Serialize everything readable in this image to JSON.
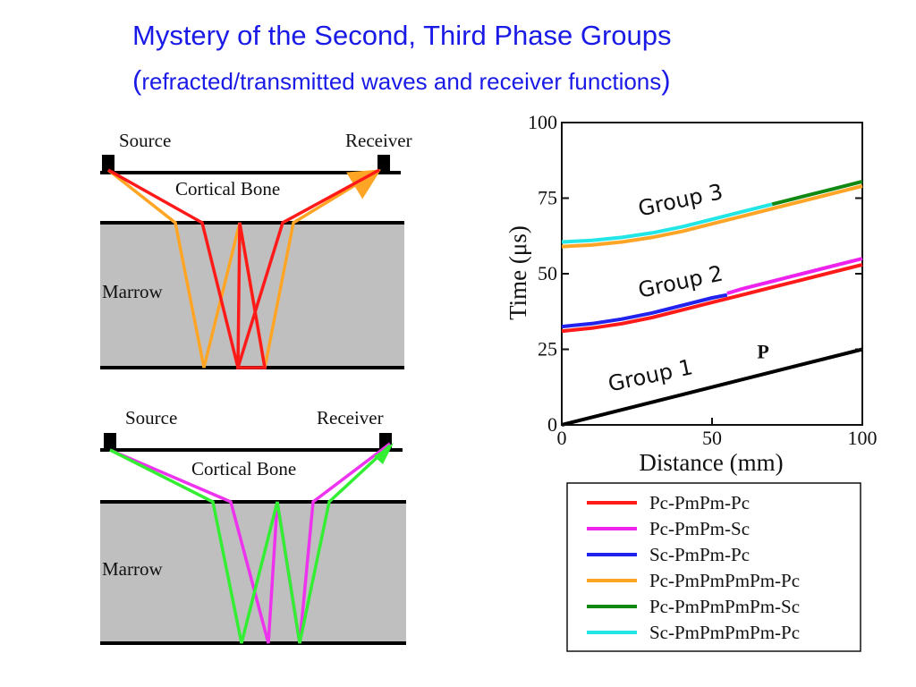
{
  "slide": {
    "title": "Mystery of the Second, Third Phase Groups",
    "subtitle_open": "(",
    "subtitle_text": "refracted/transmitted waves and receiver functions",
    "subtitle_close": ")"
  },
  "diagram_top": {
    "source_label": "Source",
    "receiver_label": "Receiver",
    "bone_label": "Cortical Bone",
    "marrow_label": "Marrow",
    "colors": {
      "ray_a": "#ff1a1a",
      "ray_b": "#ffa526",
      "marrow": "#bfbfbf"
    }
  },
  "diagram_bottom": {
    "source_label": "Source",
    "receiver_label": "Receiver",
    "bone_label": "Cortical Bone",
    "marrow_label": "Marrow",
    "colors": {
      "ray_a": "#33ee33",
      "ray_b": "#ee33ee",
      "marrow": "#bfbfbf"
    }
  },
  "chart_data": {
    "type": "line",
    "xlabel": "Distance (mm)",
    "ylabel": "Time (μs)",
    "xlim": [
      0,
      100
    ],
    "ylim": [
      0,
      100
    ],
    "x_ticks": [
      0,
      50,
      100
    ],
    "y_ticks": [
      0,
      25,
      50,
      75,
      100
    ],
    "grid": false,
    "legend_position": "below",
    "annotations": [
      {
        "text": "Group 1",
        "x": 30,
        "y": 14
      },
      {
        "text": "Group 2",
        "x": 40,
        "y": 45
      },
      {
        "text": "Group 3",
        "x": 40,
        "y": 72
      },
      {
        "text": "P",
        "x": 67,
        "y": 22
      }
    ],
    "series": [
      {
        "name": "Pc-PmPm-Pc",
        "color": "#ff1a1a",
        "x": [
          0,
          10,
          20,
          30,
          40,
          50,
          60,
          70,
          80,
          90,
          100
        ],
        "y": [
          31,
          32,
          33.5,
          35.5,
          38,
          40.5,
          43,
          45.5,
          48,
          50.5,
          53
        ]
      },
      {
        "name": "Pc-PmPm-Sc",
        "color": "#ee22ee",
        "x": [
          55,
          60,
          70,
          80,
          90,
          100
        ],
        "y": [
          43.5,
          45,
          47.5,
          50,
          52.5,
          55
        ]
      },
      {
        "name": "Sc-PmPm-Pc",
        "color": "#2222ee",
        "x": [
          0,
          10,
          20,
          30,
          40,
          50,
          55
        ],
        "y": [
          32.5,
          33.5,
          35,
          37,
          39.5,
          42,
          43
        ]
      },
      {
        "name": "Pc-PmPmPmPm-Pc",
        "color": "#ffa526",
        "x": [
          0,
          10,
          20,
          30,
          40,
          50,
          60,
          70,
          80,
          90,
          100
        ],
        "y": [
          59,
          59.5,
          60.5,
          62,
          64,
          66.5,
          69,
          71.5,
          74,
          76.5,
          79
        ]
      },
      {
        "name": "Pc-PmPmPmPm-Sc",
        "color": "#118811",
        "x": [
          70,
          80,
          90,
          100
        ],
        "y": [
          73,
          75.5,
          78,
          80.5
        ]
      },
      {
        "name": "Sc-PmPmPmPm-Pc",
        "color": "#22e6e6",
        "x": [
          0,
          10,
          20,
          30,
          40,
          50,
          60,
          70
        ],
        "y": [
          60.5,
          61,
          62,
          63.5,
          65.5,
          68,
          70.5,
          73
        ]
      },
      {
        "name": "P",
        "color": "#000000",
        "x": [
          0,
          100
        ],
        "y": [
          0,
          25
        ]
      }
    ]
  }
}
